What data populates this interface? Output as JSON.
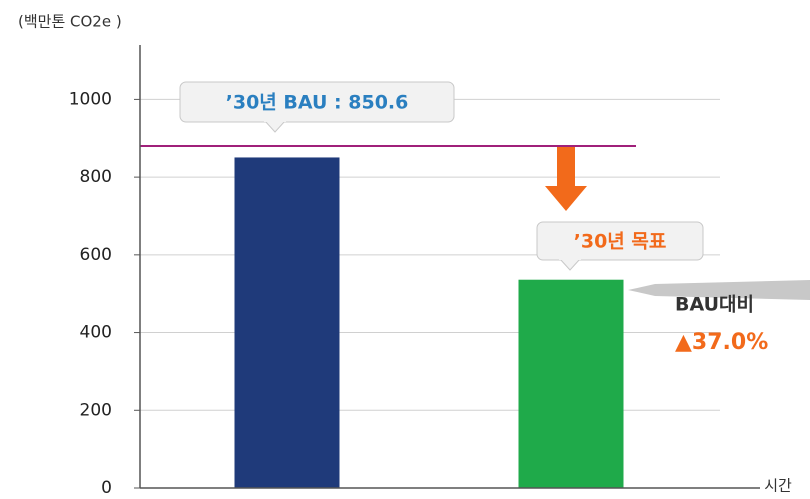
{
  "chart_data": {
    "type": "bar",
    "y_axis_label": "(백만톤 CO2e )",
    "x_axis_label": "시간",
    "categories": [
      null,
      null
    ],
    "series": [
      {
        "name": null,
        "colors": [
          "#1f3a7a",
          "#1faa4a"
        ],
        "values": [
          850.6,
          536
        ]
      }
    ],
    "reference_line": 880,
    "reference_line_color": "#a0207a",
    "annotations": [
      "’30년 BAU : 850.6",
      "’30년 목표",
      "BAU대비",
      "▲37.0%"
    ],
    "ylim": [
      0,
      1140
    ],
    "yticks": [
      0,
      200,
      400,
      600,
      800,
      1000
    ],
    "grid": true
  }
}
